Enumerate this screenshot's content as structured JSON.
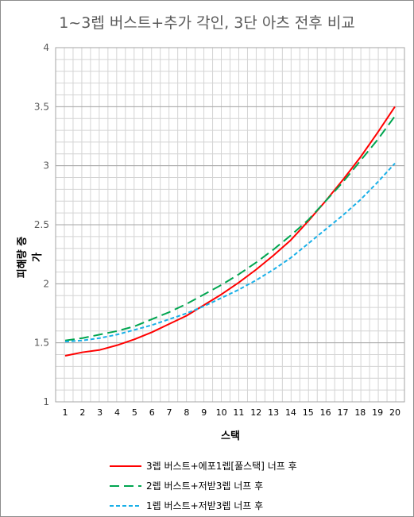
{
  "chart_data": {
    "type": "line",
    "title": "1~3렙 버스트+추가 각인, 3단 아츠 전후 비교",
    "xlabel": "스택",
    "ylabel": "피해량 증가",
    "x": [
      1,
      2,
      3,
      4,
      5,
      6,
      7,
      8,
      9,
      10,
      11,
      12,
      13,
      14,
      15,
      16,
      17,
      18,
      19,
      20
    ],
    "ylim": [
      1,
      4
    ],
    "yticks": [
      "1",
      "1.5",
      "2",
      "2.5",
      "3",
      "3.5",
      "4"
    ],
    "grid": true,
    "legend_position": "bottom",
    "series": [
      {
        "name": "3렙 버스트+에포1렙[풀스택] 너프 후",
        "color": "#ff0000",
        "dash": "solid",
        "values": [
          1.39,
          1.42,
          1.44,
          1.48,
          1.53,
          1.59,
          1.66,
          1.73,
          1.82,
          1.91,
          2.01,
          2.12,
          2.24,
          2.37,
          2.53,
          2.7,
          2.88,
          3.07,
          3.28,
          3.5
        ]
      },
      {
        "name": "2렙 버스트+저받3렙 너프 후",
        "color": "#00a550",
        "dash": "long-dash",
        "values": [
          1.52,
          1.54,
          1.57,
          1.6,
          1.64,
          1.7,
          1.76,
          1.83,
          1.91,
          1.99,
          2.08,
          2.18,
          2.29,
          2.41,
          2.54,
          2.7,
          2.86,
          3.04,
          3.22,
          3.42
        ]
      },
      {
        "name": "1렙 버스트+저받3렙 너프 후",
        "color": "#1ab0e8",
        "dash": "short-dash",
        "values": [
          1.51,
          1.52,
          1.54,
          1.57,
          1.61,
          1.65,
          1.7,
          1.75,
          1.81,
          1.88,
          1.95,
          2.03,
          2.12,
          2.22,
          2.34,
          2.46,
          2.58,
          2.71,
          2.86,
          3.02
        ]
      }
    ]
  }
}
